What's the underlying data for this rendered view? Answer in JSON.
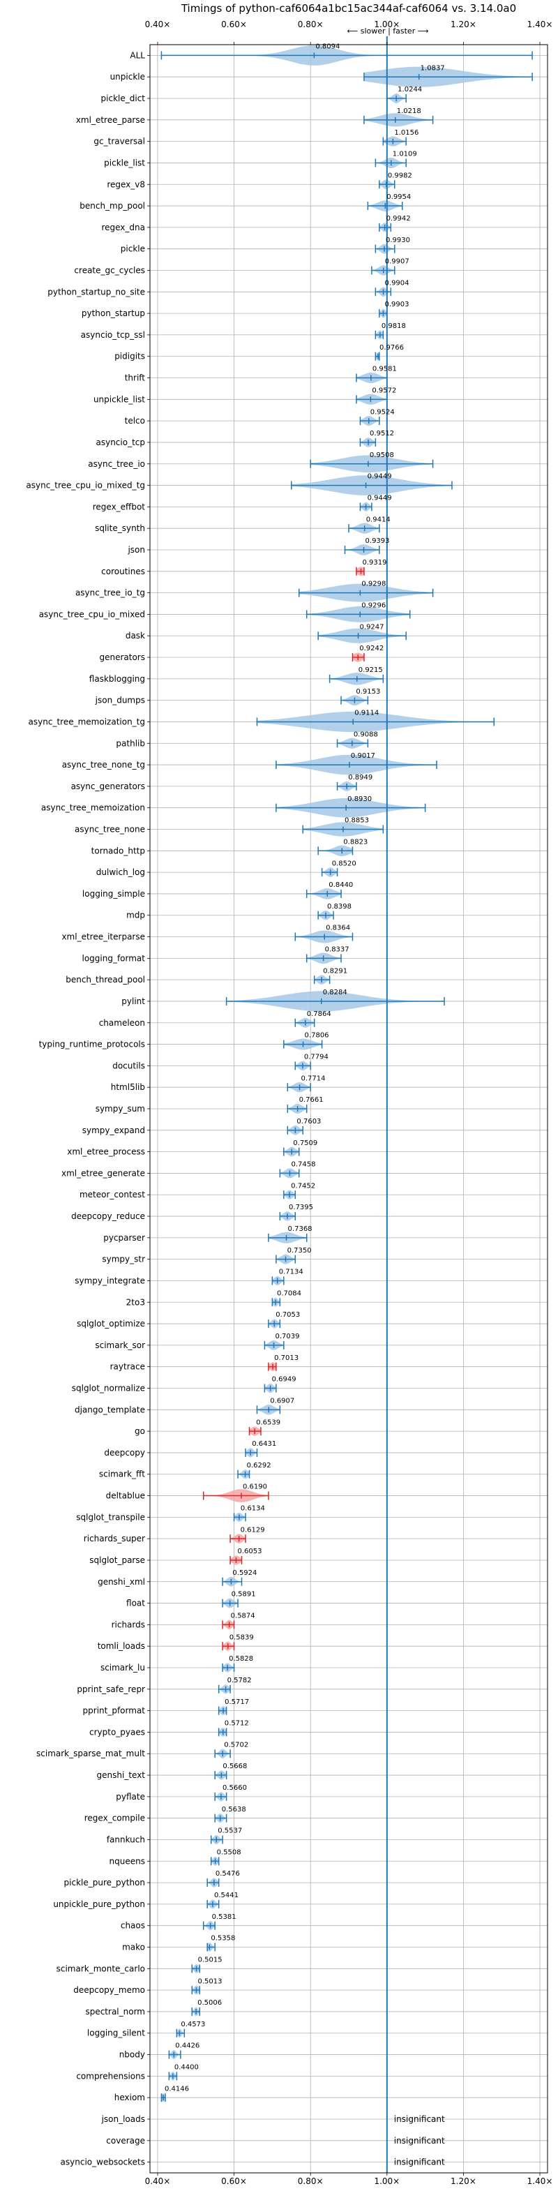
{
  "chart_data": {
    "type": "violin",
    "title": "Timings of python-caf6064a1bc15ac344af-caf6064 vs. 3.14.0a0",
    "direction_label": "⟵ slower | faster ⟶",
    "xlim": [
      0.38,
      1.42
    ],
    "xticks": [
      0.4,
      0.6,
      0.8,
      1.0,
      1.2,
      1.4
    ],
    "xtick_labels": [
      "0.40×",
      "0.60×",
      "0.80×",
      "1.00×",
      "1.20×",
      "1.40×"
    ],
    "grid": true,
    "reference_line": 1.0,
    "colors": {
      "normal": "#1f77b4",
      "highlight": "#d62728",
      "violin_fill": "#a6c8e6",
      "violin_fill_red": "#f4a6a6"
    },
    "insignificant_label": "insignificant",
    "benchmarks": [
      {
        "name": "ALL",
        "value": 0.8094,
        "lo": 0.41,
        "hi": 1.38,
        "spread": 0.06
      },
      {
        "name": "unpickle",
        "value": 1.0837,
        "lo": 0.94,
        "hi": 1.38,
        "spread": 0.11
      },
      {
        "name": "pickle_dict",
        "value": 1.0244,
        "lo": 1.0,
        "hi": 1.05,
        "spread": 0.01
      },
      {
        "name": "xml_etree_parse",
        "value": 1.0218,
        "lo": 0.94,
        "hi": 1.12,
        "spread": 0.04
      },
      {
        "name": "gc_traversal",
        "value": 1.0156,
        "lo": 0.99,
        "hi": 1.05,
        "spread": 0.015
      },
      {
        "name": "pickle_list",
        "value": 1.0109,
        "lo": 0.97,
        "hi": 1.05,
        "spread": 0.015
      },
      {
        "name": "regex_v8",
        "value": 0.9982,
        "lo": 0.98,
        "hi": 1.02,
        "spread": 0.01
      },
      {
        "name": "bench_mp_pool",
        "value": 0.9954,
        "lo": 0.95,
        "hi": 1.04,
        "spread": 0.02
      },
      {
        "name": "regex_dna",
        "value": 0.9942,
        "lo": 0.98,
        "hi": 1.01,
        "spread": 0.008
      },
      {
        "name": "pickle",
        "value": 0.993,
        "lo": 0.97,
        "hi": 1.02,
        "spread": 0.01
      },
      {
        "name": "create_gc_cycles",
        "value": 0.9907,
        "lo": 0.96,
        "hi": 1.02,
        "spread": 0.012
      },
      {
        "name": "python_startup_no_site",
        "value": 0.9904,
        "lo": 0.97,
        "hi": 1.01,
        "spread": 0.008
      },
      {
        "name": "python_startup",
        "value": 0.9903,
        "lo": 0.98,
        "hi": 1.0,
        "spread": 0.006
      },
      {
        "name": "asyncio_tcp_ssl",
        "value": 0.9818,
        "lo": 0.97,
        "hi": 0.99,
        "spread": 0.006
      },
      {
        "name": "pidigits",
        "value": 0.9766,
        "lo": 0.97,
        "hi": 0.98,
        "spread": 0.004
      },
      {
        "name": "thrift",
        "value": 0.9581,
        "lo": 0.92,
        "hi": 1.0,
        "spread": 0.02
      },
      {
        "name": "unpickle_list",
        "value": 0.9572,
        "lo": 0.92,
        "hi": 1.0,
        "spread": 0.02
      },
      {
        "name": "telco",
        "value": 0.9524,
        "lo": 0.93,
        "hi": 0.98,
        "spread": 0.012
      },
      {
        "name": "asyncio_tcp",
        "value": 0.9512,
        "lo": 0.93,
        "hi": 0.97,
        "spread": 0.01
      },
      {
        "name": "async_tree_io",
        "value": 0.9508,
        "lo": 0.8,
        "hi": 1.12,
        "spread": 0.07
      },
      {
        "name": "async_tree_cpu_io_mixed_tg",
        "value": 0.9449,
        "lo": 0.75,
        "hi": 1.17,
        "spread": 0.09
      },
      {
        "name": "regex_effbot",
        "value": 0.9449,
        "lo": 0.93,
        "hi": 0.96,
        "spread": 0.008
      },
      {
        "name": "sqlite_synth",
        "value": 0.9414,
        "lo": 0.9,
        "hi": 0.98,
        "spread": 0.018
      },
      {
        "name": "json",
        "value": 0.9393,
        "lo": 0.89,
        "hi": 0.98,
        "spread": 0.018
      },
      {
        "name": "coroutines",
        "value": 0.9319,
        "lo": 0.92,
        "hi": 0.94,
        "spread": 0.01,
        "highlight": true
      },
      {
        "name": "async_tree_io_tg",
        "value": 0.9298,
        "lo": 0.77,
        "hi": 1.12,
        "spread": 0.08
      },
      {
        "name": "async_tree_cpu_io_mixed",
        "value": 0.9296,
        "lo": 0.79,
        "hi": 1.06,
        "spread": 0.06
      },
      {
        "name": "dask",
        "value": 0.9247,
        "lo": 0.82,
        "hi": 1.05,
        "spread": 0.05
      },
      {
        "name": "generators",
        "value": 0.9242,
        "lo": 0.91,
        "hi": 0.94,
        "spread": 0.012,
        "highlight": true
      },
      {
        "name": "flaskblogging",
        "value": 0.9215,
        "lo": 0.85,
        "hi": 0.99,
        "spread": 0.03
      },
      {
        "name": "json_dumps",
        "value": 0.9153,
        "lo": 0.88,
        "hi": 0.95,
        "spread": 0.015
      },
      {
        "name": "async_tree_memoization_tg",
        "value": 0.9114,
        "lo": 0.66,
        "hi": 1.28,
        "spread": 0.12
      },
      {
        "name": "pathlib",
        "value": 0.9088,
        "lo": 0.87,
        "hi": 0.95,
        "spread": 0.018
      },
      {
        "name": "async_tree_none_tg",
        "value": 0.9017,
        "lo": 0.71,
        "hi": 1.13,
        "spread": 0.08
      },
      {
        "name": "async_generators",
        "value": 0.8949,
        "lo": 0.87,
        "hi": 0.92,
        "spread": 0.012
      },
      {
        "name": "async_tree_memoization",
        "value": 0.893,
        "lo": 0.71,
        "hi": 1.1,
        "spread": 0.08
      },
      {
        "name": "async_tree_none",
        "value": 0.8853,
        "lo": 0.78,
        "hi": 0.99,
        "spread": 0.05
      },
      {
        "name": "tornado_http",
        "value": 0.8823,
        "lo": 0.82,
        "hi": 0.91,
        "spread": 0.02
      },
      {
        "name": "dulwich_log",
        "value": 0.852,
        "lo": 0.83,
        "hi": 0.87,
        "spread": 0.01
      },
      {
        "name": "logging_simple",
        "value": 0.844,
        "lo": 0.79,
        "hi": 0.88,
        "spread": 0.02
      },
      {
        "name": "mdp",
        "value": 0.8398,
        "lo": 0.82,
        "hi": 0.86,
        "spread": 0.01
      },
      {
        "name": "xml_etree_iterparse",
        "value": 0.8364,
        "lo": 0.76,
        "hi": 0.91,
        "spread": 0.03
      },
      {
        "name": "logging_format",
        "value": 0.8337,
        "lo": 0.79,
        "hi": 0.88,
        "spread": 0.02
      },
      {
        "name": "bench_thread_pool",
        "value": 0.8291,
        "lo": 0.81,
        "hi": 0.85,
        "spread": 0.01
      },
      {
        "name": "pylint",
        "value": 0.8284,
        "lo": 0.58,
        "hi": 1.15,
        "spread": 0.1
      },
      {
        "name": "chameleon",
        "value": 0.7864,
        "lo": 0.76,
        "hi": 0.81,
        "spread": 0.012
      },
      {
        "name": "typing_runtime_protocols",
        "value": 0.7806,
        "lo": 0.73,
        "hi": 0.83,
        "spread": 0.025
      },
      {
        "name": "docutils",
        "value": 0.7794,
        "lo": 0.76,
        "hi": 0.8,
        "spread": 0.01
      },
      {
        "name": "html5lib",
        "value": 0.7714,
        "lo": 0.74,
        "hi": 0.8,
        "spread": 0.014
      },
      {
        "name": "sympy_sum",
        "value": 0.7661,
        "lo": 0.74,
        "hi": 0.79,
        "spread": 0.012
      },
      {
        "name": "sympy_expand",
        "value": 0.7603,
        "lo": 0.74,
        "hi": 0.78,
        "spread": 0.01
      },
      {
        "name": "xml_etree_process",
        "value": 0.7509,
        "lo": 0.73,
        "hi": 0.77,
        "spread": 0.01
      },
      {
        "name": "xml_etree_generate",
        "value": 0.7458,
        "lo": 0.72,
        "hi": 0.77,
        "spread": 0.012
      },
      {
        "name": "meteor_contest",
        "value": 0.7452,
        "lo": 0.73,
        "hi": 0.76,
        "spread": 0.008
      },
      {
        "name": "deepcopy_reduce",
        "value": 0.7395,
        "lo": 0.72,
        "hi": 0.76,
        "spread": 0.01
      },
      {
        "name": "pycparser",
        "value": 0.7368,
        "lo": 0.69,
        "hi": 0.79,
        "spread": 0.024
      },
      {
        "name": "sympy_str",
        "value": 0.735,
        "lo": 0.71,
        "hi": 0.76,
        "spread": 0.012
      },
      {
        "name": "sympy_integrate",
        "value": 0.7134,
        "lo": 0.7,
        "hi": 0.73,
        "spread": 0.008
      },
      {
        "name": "2to3",
        "value": 0.7084,
        "lo": 0.7,
        "hi": 0.72,
        "spread": 0.006
      },
      {
        "name": "sqlglot_optimize",
        "value": 0.7053,
        "lo": 0.69,
        "hi": 0.72,
        "spread": 0.008
      },
      {
        "name": "scimark_sor",
        "value": 0.7039,
        "lo": 0.68,
        "hi": 0.73,
        "spread": 0.012
      },
      {
        "name": "raytrace",
        "value": 0.7013,
        "lo": 0.69,
        "hi": 0.71,
        "spread": 0.008,
        "highlight": true
      },
      {
        "name": "sqlglot_normalize",
        "value": 0.6949,
        "lo": 0.68,
        "hi": 0.71,
        "spread": 0.008
      },
      {
        "name": "django_template",
        "value": 0.6907,
        "lo": 0.66,
        "hi": 0.72,
        "spread": 0.014
      },
      {
        "name": "go",
        "value": 0.6539,
        "lo": 0.64,
        "hi": 0.67,
        "spread": 0.01,
        "highlight": true
      },
      {
        "name": "deepcopy",
        "value": 0.6431,
        "lo": 0.63,
        "hi": 0.66,
        "spread": 0.008
      },
      {
        "name": "scimark_fft",
        "value": 0.6292,
        "lo": 0.61,
        "hi": 0.64,
        "spread": 0.008
      },
      {
        "name": "deltablue",
        "value": 0.619,
        "lo": 0.52,
        "hi": 0.69,
        "spread": 0.03,
        "highlight": true
      },
      {
        "name": "sqlglot_transpile",
        "value": 0.6134,
        "lo": 0.6,
        "hi": 0.63,
        "spread": 0.008
      },
      {
        "name": "richards_super",
        "value": 0.6129,
        "lo": 0.59,
        "hi": 0.63,
        "spread": 0.01,
        "highlight": true
      },
      {
        "name": "sqlglot_parse",
        "value": 0.6053,
        "lo": 0.59,
        "hi": 0.62,
        "spread": 0.01,
        "highlight": true
      },
      {
        "name": "genshi_xml",
        "value": 0.5924,
        "lo": 0.57,
        "hi": 0.62,
        "spread": 0.01
      },
      {
        "name": "float",
        "value": 0.5891,
        "lo": 0.57,
        "hi": 0.61,
        "spread": 0.01
      },
      {
        "name": "richards",
        "value": 0.5874,
        "lo": 0.57,
        "hi": 0.6,
        "spread": 0.008,
        "highlight": true
      },
      {
        "name": "tomli_loads",
        "value": 0.5839,
        "lo": 0.57,
        "hi": 0.6,
        "spread": 0.008,
        "highlight": true
      },
      {
        "name": "scimark_lu",
        "value": 0.5828,
        "lo": 0.57,
        "hi": 0.6,
        "spread": 0.008
      },
      {
        "name": "pprint_safe_repr",
        "value": 0.5782,
        "lo": 0.56,
        "hi": 0.59,
        "spread": 0.008
      },
      {
        "name": "pprint_pformat",
        "value": 0.5717,
        "lo": 0.56,
        "hi": 0.58,
        "spread": 0.007
      },
      {
        "name": "crypto_pyaes",
        "value": 0.5712,
        "lo": 0.56,
        "hi": 0.58,
        "spread": 0.007
      },
      {
        "name": "scimark_sparse_mat_mult",
        "value": 0.5702,
        "lo": 0.55,
        "hi": 0.59,
        "spread": 0.008
      },
      {
        "name": "genshi_text",
        "value": 0.5668,
        "lo": 0.55,
        "hi": 0.58,
        "spread": 0.008
      },
      {
        "name": "pyflate",
        "value": 0.566,
        "lo": 0.55,
        "hi": 0.58,
        "spread": 0.007
      },
      {
        "name": "regex_compile",
        "value": 0.5638,
        "lo": 0.55,
        "hi": 0.58,
        "spread": 0.007
      },
      {
        "name": "fannkuch",
        "value": 0.5537,
        "lo": 0.54,
        "hi": 0.57,
        "spread": 0.007
      },
      {
        "name": "nqueens",
        "value": 0.5508,
        "lo": 0.54,
        "hi": 0.56,
        "spread": 0.006
      },
      {
        "name": "pickle_pure_python",
        "value": 0.5476,
        "lo": 0.53,
        "hi": 0.56,
        "spread": 0.007
      },
      {
        "name": "unpickle_pure_python",
        "value": 0.5441,
        "lo": 0.53,
        "hi": 0.56,
        "spread": 0.007
      },
      {
        "name": "chaos",
        "value": 0.5381,
        "lo": 0.52,
        "hi": 0.55,
        "spread": 0.007
      },
      {
        "name": "mako",
        "value": 0.5358,
        "lo": 0.53,
        "hi": 0.55,
        "spread": 0.006
      },
      {
        "name": "scimark_monte_carlo",
        "value": 0.5015,
        "lo": 0.49,
        "hi": 0.51,
        "spread": 0.006
      },
      {
        "name": "deepcopy_memo",
        "value": 0.5013,
        "lo": 0.49,
        "hi": 0.51,
        "spread": 0.006
      },
      {
        "name": "spectral_norm",
        "value": 0.5006,
        "lo": 0.49,
        "hi": 0.51,
        "spread": 0.005
      },
      {
        "name": "logging_silent",
        "value": 0.4573,
        "lo": 0.45,
        "hi": 0.47,
        "spread": 0.005
      },
      {
        "name": "nbody",
        "value": 0.4426,
        "lo": 0.43,
        "hi": 0.46,
        "spread": 0.006
      },
      {
        "name": "comprehensions",
        "value": 0.44,
        "lo": 0.43,
        "hi": 0.45,
        "spread": 0.005
      },
      {
        "name": "hexiom",
        "value": 0.4146,
        "lo": 0.41,
        "hi": 0.42,
        "spread": 0.004
      },
      {
        "name": "json_loads",
        "value": null,
        "insignificant": true
      },
      {
        "name": "coverage",
        "value": null,
        "insignificant": true
      },
      {
        "name": "asyncio_websockets",
        "value": null,
        "insignificant": true
      }
    ]
  }
}
